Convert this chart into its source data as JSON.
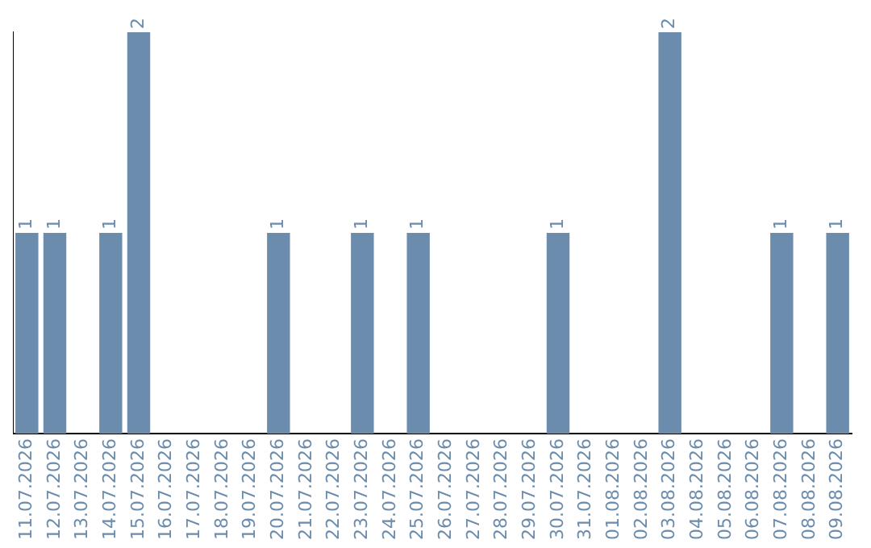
{
  "chart_data": {
    "type": "bar",
    "categories": [
      "11.07.2026",
      "12.07.2026",
      "13.07.2026",
      "14.07.2026",
      "15.07.2026",
      "16.07.2026",
      "17.07.2026",
      "18.07.2026",
      "19.07.2026",
      "20.07.2026",
      "21.07.2026",
      "22.07.2026",
      "23.07.2026",
      "24.07.2026",
      "25.07.2026",
      "26.07.2026",
      "27.07.2026",
      "28.07.2026",
      "29.07.2026",
      "30.07.2026",
      "31.07.2026",
      "01.08.2026",
      "02.08.2026",
      "03.08.2026",
      "04.08.2026",
      "05.08.2026",
      "06.08.2026",
      "07.08.2026",
      "08.08.2026",
      "09.08.2026"
    ],
    "values": [
      1,
      1,
      0,
      1,
      2,
      0,
      0,
      0,
      0,
      1,
      0,
      0,
      1,
      0,
      1,
      0,
      0,
      0,
      0,
      1,
      0,
      0,
      0,
      2,
      0,
      0,
      0,
      1,
      0,
      1
    ],
    "value_labels": [
      "1",
      "1",
      null,
      "1",
      "2",
      null,
      null,
      null,
      null,
      "1",
      null,
      null,
      "1",
      null,
      "1",
      null,
      null,
      null,
      null,
      "1",
      null,
      null,
      null,
      "2",
      null,
      null,
      null,
      "1",
      null,
      "1"
    ],
    "color": "#6b8cac",
    "tick_labels": "x",
    "grid": false,
    "legend": false
  }
}
